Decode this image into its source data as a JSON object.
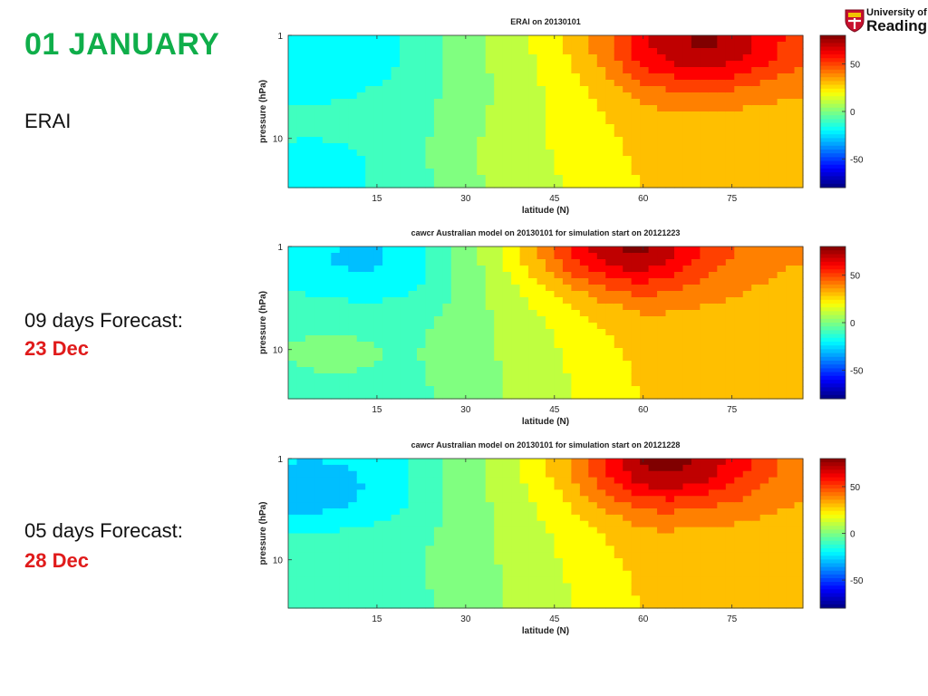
{
  "slide": {
    "title": "01  JANUARY",
    "labels": [
      {
        "text": "ERAI",
        "date": ""
      },
      {
        "text": "09 days Forecast:",
        "date": "23 Dec"
      },
      {
        "text": "05 days Forecast:",
        "date": "28 Dec"
      }
    ]
  },
  "logo": {
    "line1": "University of",
    "line2": "Reading",
    "icon": "shield-crest-icon"
  },
  "colors": {
    "title": "#0fae4a",
    "forecast_date": "#e01b1b"
  },
  "chart_data": [
    {
      "type": "heatmap",
      "title": "ERAI on 20130101",
      "xlabel": "latitude (N)",
      "ylabel": "pressure (hPa)",
      "x_ticks": [
        15,
        30,
        45,
        60,
        75
      ],
      "x_tick_labels": [
        "15",
        "30",
        "45",
        "60",
        "75"
      ],
      "xlim": [
        0,
        87
      ],
      "y_ticks": [
        1,
        10
      ],
      "y_tick_labels": [
        "1",
        "10"
      ],
      "ylim": [
        1,
        30
      ],
      "y_scale": "log",
      "y_reversed": true,
      "colorbar": {
        "ticks": [
          50,
          0,
          -50
        ],
        "tick_labels": [
          "50",
          "0",
          "-50"
        ],
        "range": [
          -80,
          80
        ],
        "colormap": "jet"
      },
      "field_features": [
        {
          "lat": 70,
          "p": 1.2,
          "value": 75,
          "kind": "max"
        },
        {
          "lat": 3,
          "p": 1.5,
          "value": -25,
          "kind": "min"
        },
        {
          "lat": 5,
          "p": 22,
          "value": -15,
          "kind": "min"
        },
        {
          "lat": 32,
          "p": 18,
          "value": 8,
          "kind": "max"
        }
      ]
    },
    {
      "type": "heatmap",
      "title": "cawcr Australian model on 20130101 for simulation start on 20121223",
      "xlabel": "latitude (N)",
      "ylabel": "pressure (hPa)",
      "x_ticks": [
        15,
        30,
        45,
        60,
        75
      ],
      "x_tick_labels": [
        "15",
        "30",
        "45",
        "60",
        "75"
      ],
      "xlim": [
        0,
        87
      ],
      "y_ticks": [
        1,
        10
      ],
      "y_tick_labels": [
        "1",
        "10"
      ],
      "ylim": [
        1,
        30
      ],
      "y_scale": "log",
      "y_reversed": true,
      "colorbar": {
        "ticks": [
          50,
          0,
          -50
        ],
        "tick_labels": [
          "50",
          "0",
          "-50"
        ],
        "range": [
          -80,
          80
        ],
        "colormap": "jet"
      },
      "field_features": [
        {
          "lat": 56,
          "p": 1.0,
          "value": 80,
          "kind": "max"
        },
        {
          "lat": 12,
          "p": 1.3,
          "value": -30,
          "kind": "min"
        },
        {
          "lat": 8,
          "p": 10,
          "value": 12,
          "kind": "max"
        }
      ]
    },
    {
      "type": "heatmap",
      "title": "cawcr Australian model on 20130101 for simulation start on 20121228",
      "xlabel": "latitude (N)",
      "ylabel": "pressure (hPa)",
      "x_ticks": [
        15,
        30,
        45,
        60,
        75
      ],
      "x_tick_labels": [
        "15",
        "30",
        "45",
        "60",
        "75"
      ],
      "xlim": [
        0,
        87
      ],
      "y_ticks": [
        1,
        10
      ],
      "y_tick_labels": [
        "1",
        "10"
      ],
      "ylim": [
        1,
        30
      ],
      "y_scale": "log",
      "y_reversed": true,
      "colorbar": {
        "ticks": [
          50,
          0,
          -50
        ],
        "tick_labels": [
          "50",
          "0",
          "-50"
        ],
        "range": [
          -80,
          80
        ],
        "colormap": "jet"
      },
      "field_features": [
        {
          "lat": 64,
          "p": 1.1,
          "value": 78,
          "kind": "max"
        },
        {
          "lat": 3,
          "p": 2.0,
          "value": -40,
          "kind": "min"
        },
        {
          "lat": 8,
          "p": 10,
          "value": 10,
          "kind": "max"
        }
      ]
    }
  ]
}
